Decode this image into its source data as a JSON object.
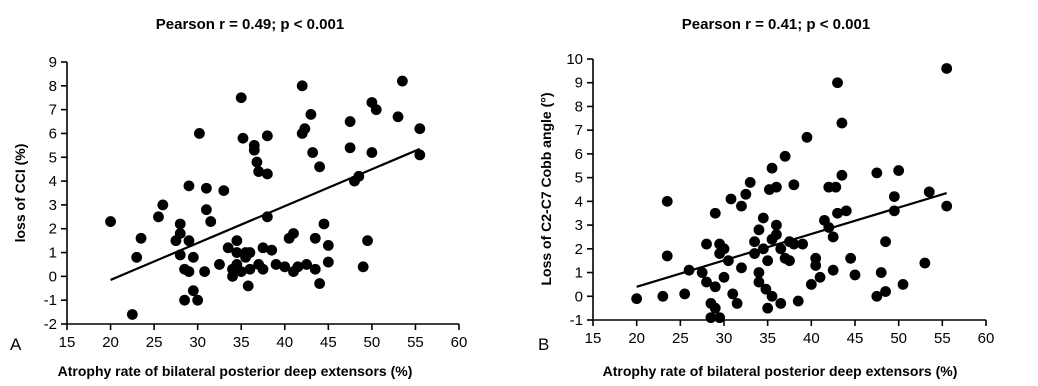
{
  "chart_data": [
    {
      "type": "scatter",
      "panel_label": "A",
      "title": "Pearson r = 0.49; p < 0.001",
      "xlabel": "Atrophy rate of bilateral posterior deep extensors (%)",
      "ylabel": "loss of CCI (%)",
      "xlim": [
        15,
        60
      ],
      "ylim": [
        -2,
        9
      ],
      "xticks": [
        15,
        20,
        25,
        30,
        35,
        40,
        45,
        50,
        55,
        60
      ],
      "yticks": [
        -2,
        -1,
        0,
        1,
        2,
        3,
        4,
        5,
        6,
        7,
        8,
        9
      ],
      "fit_line": {
        "x": [
          20,
          55.5
        ],
        "y": [
          -0.15,
          5.35
        ]
      },
      "points": [
        [
          20,
          2.3
        ],
        [
          22.5,
          -1.6
        ],
        [
          23,
          0.8
        ],
        [
          23.5,
          1.6
        ],
        [
          25.5,
          2.5
        ],
        [
          26,
          3
        ],
        [
          27.5,
          1.5
        ],
        [
          28,
          2.2
        ],
        [
          28,
          1.8
        ],
        [
          28,
          0.9
        ],
        [
          28.5,
          -1
        ],
        [
          28.5,
          0.3
        ],
        [
          29,
          3.8
        ],
        [
          29,
          1.5
        ],
        [
          29.5,
          0.8
        ],
        [
          29,
          0.2
        ],
        [
          29.5,
          -0.6
        ],
        [
          30,
          -1
        ],
        [
          30.2,
          6
        ],
        [
          30.8,
          0.2
        ],
        [
          31,
          2.8
        ],
        [
          31,
          3.7
        ],
        [
          31.5,
          2.3
        ],
        [
          32.5,
          0.5
        ],
        [
          33,
          3.6
        ],
        [
          33.5,
          1.2
        ],
        [
          34,
          0
        ],
        [
          34,
          0.3
        ],
        [
          34.5,
          0.5
        ],
        [
          34.5,
          1
        ],
        [
          34.5,
          1.5
        ],
        [
          35,
          0.2
        ],
        [
          35,
          7.5
        ],
        [
          35.2,
          5.8
        ],
        [
          35.5,
          0.8
        ],
        [
          35.5,
          1
        ],
        [
          35.8,
          -0.4
        ],
        [
          36,
          0.3
        ],
        [
          36,
          1
        ],
        [
          36.5,
          5.5
        ],
        [
          36.5,
          5.3
        ],
        [
          36.8,
          4.8
        ],
        [
          37,
          4.4
        ],
        [
          37,
          0.5
        ],
        [
          37.5,
          1.2
        ],
        [
          37.5,
          0.3
        ],
        [
          38,
          2.5
        ],
        [
          38,
          5.9
        ],
        [
          38,
          4.3
        ],
        [
          38.5,
          1.1
        ],
        [
          39,
          0.5
        ],
        [
          40,
          0.4
        ],
        [
          40.5,
          1.6
        ],
        [
          41,
          1.8
        ],
        [
          41,
          0.2
        ],
        [
          41.5,
          0.4
        ],
        [
          42,
          8
        ],
        [
          42,
          6
        ],
        [
          42.3,
          6.2
        ],
        [
          42.5,
          0.5
        ],
        [
          43,
          6.8
        ],
        [
          43.2,
          5.2
        ],
        [
          43.5,
          1.6
        ],
        [
          43.5,
          0.3
        ],
        [
          44,
          -0.3
        ],
        [
          44,
          4.6
        ],
        [
          44.5,
          2.2
        ],
        [
          45,
          0.6
        ],
        [
          45,
          1.3
        ],
        [
          47.5,
          6.5
        ],
        [
          47.5,
          5.4
        ],
        [
          48,
          4
        ],
        [
          48.5,
          4.2
        ],
        [
          49,
          0.4
        ],
        [
          49.5,
          1.5
        ],
        [
          50,
          7.3
        ],
        [
          50,
          5.2
        ],
        [
          50.5,
          7
        ],
        [
          53,
          6.7
        ],
        [
          53.5,
          8.2
        ],
        [
          55.5,
          6.2
        ],
        [
          55.5,
          5.1
        ]
      ]
    },
    {
      "type": "scatter",
      "panel_label": "B",
      "title": "Pearson r = 0.41; p < 0.001",
      "xlabel": "Atrophy rate of bilateral posterior deep extensors (%)",
      "ylabel": "Loss of C2-C7 Cobb angle (°)",
      "xlim": [
        15,
        60
      ],
      "ylim": [
        -1,
        10
      ],
      "xticks": [
        15,
        20,
        25,
        30,
        35,
        40,
        45,
        50,
        55,
        60
      ],
      "yticks": [
        -1,
        0,
        1,
        2,
        3,
        4,
        5,
        6,
        7,
        8,
        9,
        10
      ],
      "fit_line": {
        "x": [
          20,
          55.5
        ],
        "y": [
          0.4,
          4.35
        ]
      },
      "points": [
        [
          20,
          -0.1
        ],
        [
          23,
          0
        ],
        [
          23.5,
          1.7
        ],
        [
          23.5,
          4
        ],
        [
          25.5,
          0.1
        ],
        [
          26,
          1.1
        ],
        [
          27.5,
          1
        ],
        [
          28,
          2.2
        ],
        [
          28,
          0.6
        ],
        [
          28.5,
          -0.3
        ],
        [
          28.5,
          -0.9
        ],
        [
          29,
          3.5
        ],
        [
          29,
          0.4
        ],
        [
          29,
          -0.5
        ],
        [
          29.5,
          2.2
        ],
        [
          29.5,
          1.8
        ],
        [
          29.5,
          -0.9
        ],
        [
          30,
          0.8
        ],
        [
          30,
          2
        ],
        [
          30.5,
          1.5
        ],
        [
          30.8,
          4.1
        ],
        [
          31,
          0.1
        ],
        [
          31.5,
          -0.3
        ],
        [
          32,
          3.8
        ],
        [
          32,
          1.2
        ],
        [
          32.5,
          4.3
        ],
        [
          33,
          4.8
        ],
        [
          33.5,
          1.8
        ],
        [
          33.5,
          2.3
        ],
        [
          34,
          2.8
        ],
        [
          34,
          1
        ],
        [
          34,
          0.6
        ],
        [
          34.5,
          3.3
        ],
        [
          34.5,
          2
        ],
        [
          34.8,
          0.3
        ],
        [
          35,
          -0.5
        ],
        [
          35,
          1.5
        ],
        [
          35.2,
          4.5
        ],
        [
          35.5,
          5.4
        ],
        [
          35.5,
          2.4
        ],
        [
          35.5,
          0
        ],
        [
          36,
          4.6
        ],
        [
          36,
          3
        ],
        [
          36,
          2.6
        ],
        [
          36.5,
          2
        ],
        [
          36.5,
          -0.3
        ],
        [
          37,
          5.9
        ],
        [
          37,
          1.6
        ],
        [
          37.5,
          1.5
        ],
        [
          37.5,
          2.3
        ],
        [
          38,
          4.7
        ],
        [
          38,
          2.2
        ],
        [
          38.5,
          -0.2
        ],
        [
          39,
          2.2
        ],
        [
          39.5,
          6.7
        ],
        [
          40,
          0.5
        ],
        [
          40.5,
          1.6
        ],
        [
          40.5,
          1.3
        ],
        [
          41,
          0.8
        ],
        [
          41.5,
          3.2
        ],
        [
          42,
          4.6
        ],
        [
          42,
          2.9
        ],
        [
          42.5,
          2.5
        ],
        [
          42.5,
          1.1
        ],
        [
          42.8,
          4.6
        ],
        [
          43,
          9
        ],
        [
          43,
          3.5
        ],
        [
          43.5,
          5.1
        ],
        [
          43.5,
          7.3
        ],
        [
          44,
          3.6
        ],
        [
          44.5,
          1.6
        ],
        [
          45,
          0.9
        ],
        [
          47.5,
          5.2
        ],
        [
          47.5,
          0
        ],
        [
          48,
          1
        ],
        [
          48.5,
          0.2
        ],
        [
          48.5,
          2.3
        ],
        [
          49.5,
          4.2
        ],
        [
          49.5,
          3.6
        ],
        [
          50,
          5.3
        ],
        [
          50.5,
          0.5
        ],
        [
          53,
          1.4
        ],
        [
          53.5,
          4.4
        ],
        [
          55.5,
          3.8
        ],
        [
          55.5,
          9.6
        ]
      ]
    }
  ]
}
